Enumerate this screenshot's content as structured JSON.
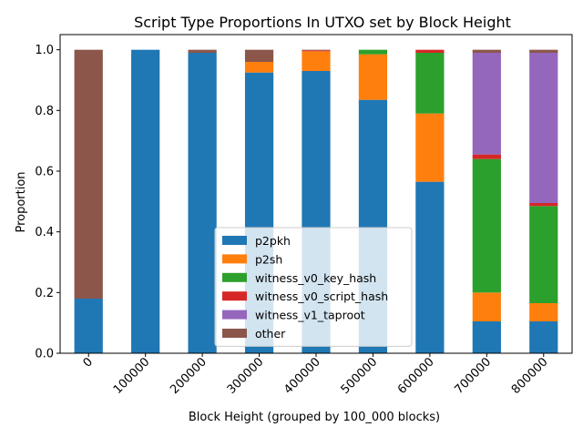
{
  "chart_data": {
    "type": "bar",
    "stacked": true,
    "title": "Script Type Proportions In UTXO set by Block Height",
    "xlabel": "Block Height (grouped by 100_000 blocks)",
    "ylabel": "Proportion",
    "ylim": [
      0,
      1.05
    ],
    "yticks": [
      "0.0",
      "0.2",
      "0.4",
      "0.6",
      "0.8",
      "1.0"
    ],
    "categories": [
      "0",
      "100000",
      "200000",
      "300000",
      "400000",
      "500000",
      "600000",
      "700000",
      "800000"
    ],
    "legend_position": "lower-center",
    "series": [
      {
        "name": "p2pkh",
        "color": "#1f77b4",
        "values": [
          0.18,
          1.0,
          0.99,
          0.925,
          0.93,
          0.835,
          0.565,
          0.105,
          0.105
        ]
      },
      {
        "name": "p2sh",
        "color": "#ff7f0e",
        "values": [
          0.0,
          0.0,
          0.0,
          0.035,
          0.065,
          0.15,
          0.225,
          0.095,
          0.06
        ]
      },
      {
        "name": "witness_v0_key_hash",
        "color": "#2ca02c",
        "values": [
          0.0,
          0.0,
          0.0,
          0.0,
          0.0,
          0.015,
          0.2,
          0.44,
          0.32
        ]
      },
      {
        "name": "witness_v0_script_hash",
        "color": "#d62728",
        "values": [
          0.0,
          0.0,
          0.0,
          0.0,
          0.003,
          0.0,
          0.01,
          0.015,
          0.01
        ]
      },
      {
        "name": "witness_v1_taproot",
        "color": "#9467bd",
        "values": [
          0.0,
          0.0,
          0.0,
          0.0,
          0.0,
          0.0,
          0.0,
          0.335,
          0.495
        ]
      },
      {
        "name": "other",
        "color": "#8c564b",
        "values": [
          0.82,
          0.0,
          0.01,
          0.04,
          0.002,
          0.0,
          0.0,
          0.01,
          0.01
        ]
      }
    ]
  }
}
